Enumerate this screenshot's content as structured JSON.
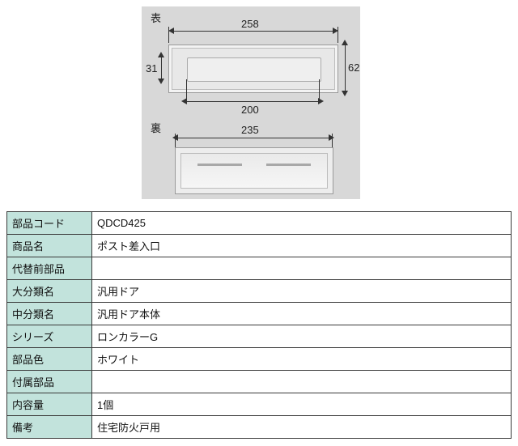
{
  "diagram": {
    "front_label": "表",
    "back_label": "裏",
    "dims": {
      "outer_width": "258",
      "outer_height": "62",
      "slot_height": "31",
      "slot_width": "200",
      "back_width": "235"
    },
    "colors": {
      "bg": "#d8d8d8",
      "plate": "#e8e8e8",
      "line": "#333333"
    }
  },
  "table": {
    "rows": [
      {
        "label": "部品コード",
        "value": "QDCD425"
      },
      {
        "label": "商品名",
        "value": "ポスト差入口"
      },
      {
        "label": "代替前部品",
        "value": ""
      },
      {
        "label": "大分類名",
        "value": "汎用ドア"
      },
      {
        "label": "中分類名",
        "value": "汎用ドア本体"
      },
      {
        "label": "シリーズ",
        "value": "ロンカラーG"
      },
      {
        "label": "部品色",
        "value": "ホワイト"
      },
      {
        "label": "付属部品",
        "value": ""
      },
      {
        "label": "内容量",
        "value": "1個"
      },
      {
        "label": "備考",
        "value": "住宅防火戸用"
      }
    ],
    "header_bg": "#c2e3dc",
    "border_color": "#3a3a3a"
  }
}
